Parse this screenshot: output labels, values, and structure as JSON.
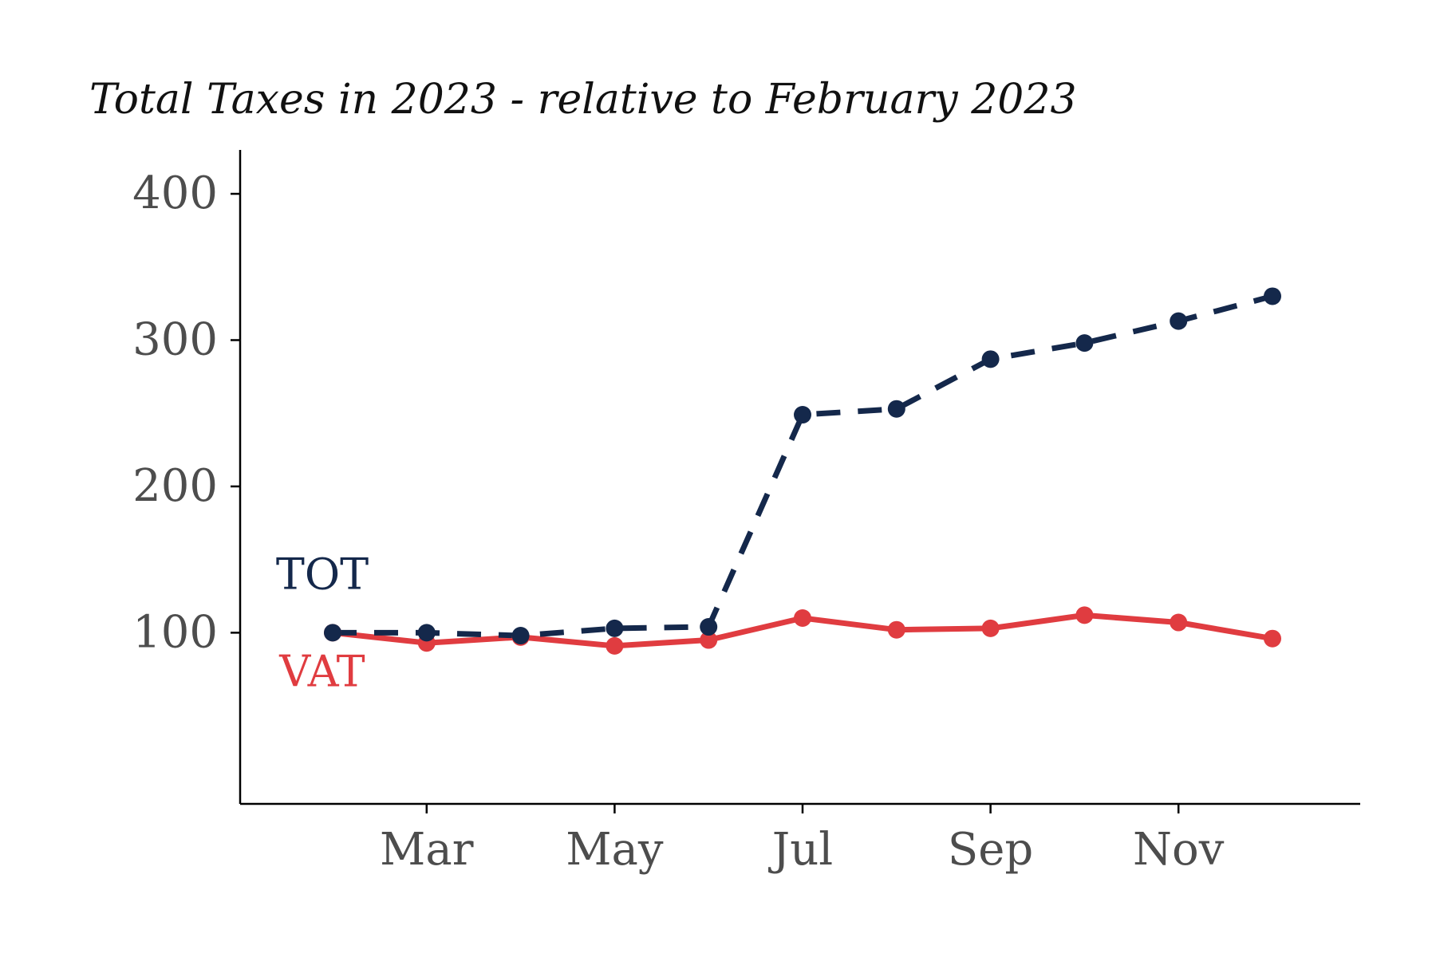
{
  "chart_data": {
    "type": "line",
    "title": "Total Taxes in 2023 - relative to February 2023",
    "xlabel": "",
    "ylabel": "",
    "x": [
      "2023-02",
      "2023-03",
      "2023-04",
      "2023-05",
      "2023-06",
      "2023-07",
      "2023-08",
      "2023-09",
      "2023-10",
      "2023-11",
      "2023-12"
    ],
    "x_ticks": [
      {
        "x": "2023-03",
        "label": "Mar"
      },
      {
        "x": "2023-05",
        "label": "May"
      },
      {
        "x": "2023-07",
        "label": "Jul"
      },
      {
        "x": "2023-09",
        "label": "Sep"
      },
      {
        "x": "2023-11",
        "label": "Nov"
      }
    ],
    "y_ticks": [
      100,
      200,
      300,
      400
    ],
    "ylim": [
      -17,
      430
    ],
    "grid": false,
    "legend": "direct labels at left of series",
    "series": [
      {
        "name": "TOT",
        "color": "#14284b",
        "line_style": "dashed",
        "values": [
          100,
          100,
          98,
          103,
          104,
          249,
          253,
          287,
          298,
          313,
          330
        ]
      },
      {
        "name": "VAT",
        "color": "#e03c40",
        "line_style": "solid",
        "values": [
          100,
          93,
          97,
          91,
          95,
          110,
          102,
          103,
          112,
          107,
          96
        ]
      }
    ]
  }
}
